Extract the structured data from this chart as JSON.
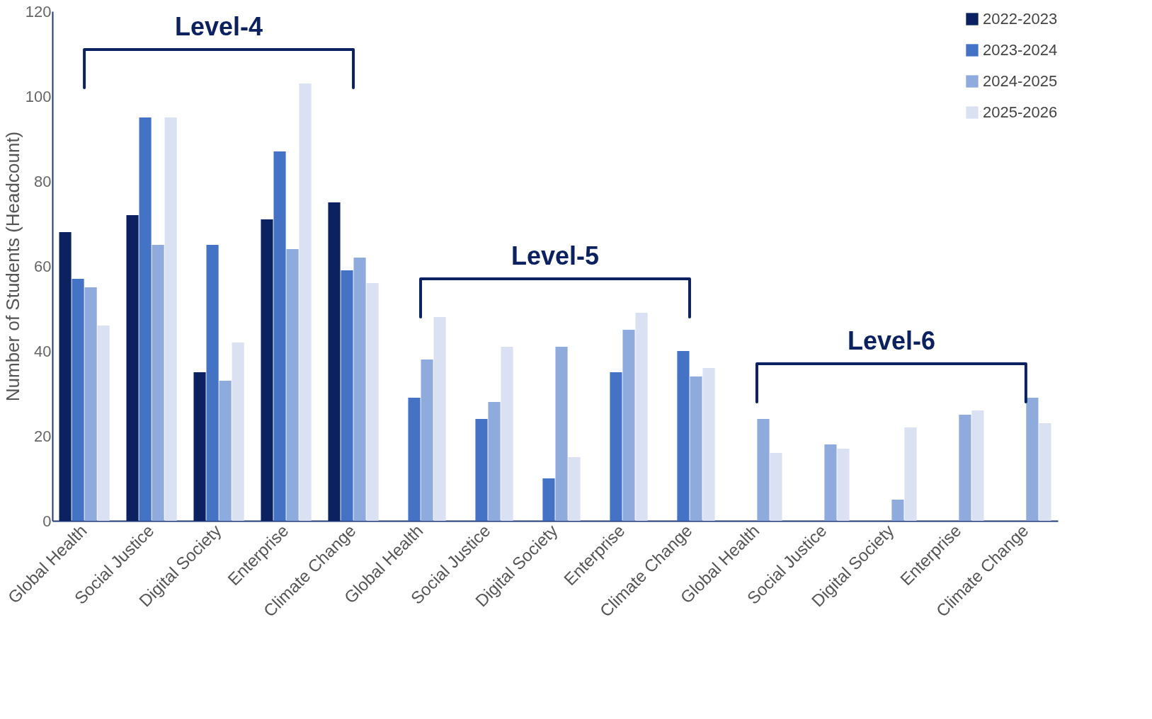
{
  "chart_data": {
    "type": "bar",
    "ylabel": "Number of Students (Headcount)",
    "categories": [
      "Global Health",
      "Social Justice",
      "Digital Society",
      "Enterprise",
      "Climate Change",
      "Global Health",
      "Social Justice",
      "Digital Society",
      "Enterprise",
      "Climate Change",
      "Global Health",
      "Social Justice",
      "Digital Society",
      "Enterprise",
      "Climate Change"
    ],
    "series": [
      {
        "name": "2022-2023",
        "color": "#0c2260",
        "values": [
          68,
          72,
          35,
          71,
          75,
          null,
          null,
          null,
          null,
          null,
          null,
          null,
          null,
          null,
          null
        ]
      },
      {
        "name": "2023-2024",
        "color": "#4472c4",
        "values": [
          57,
          95,
          65,
          87,
          59,
          29,
          24,
          10,
          35,
          40,
          null,
          null,
          null,
          null,
          null
        ]
      },
      {
        "name": "2024-2025",
        "color": "#8faadc",
        "values": [
          55,
          65,
          33,
          64,
          62,
          38,
          28,
          41,
          45,
          34,
          24,
          18,
          5,
          25,
          29
        ]
      },
      {
        "name": "2025-2026",
        "color": "#dae1f3",
        "values": [
          46,
          95,
          42,
          103,
          56,
          48,
          41,
          15,
          49,
          36,
          16,
          17,
          22,
          26,
          23
        ]
      }
    ],
    "annotations": [
      "Level-4",
      "Level-5",
      "Level-6"
    ],
    "ylim": [
      0,
      120
    ],
    "yticks": [
      0,
      20,
      40,
      60,
      80,
      100,
      120
    ],
    "grid": false,
    "legend": "top right"
  }
}
